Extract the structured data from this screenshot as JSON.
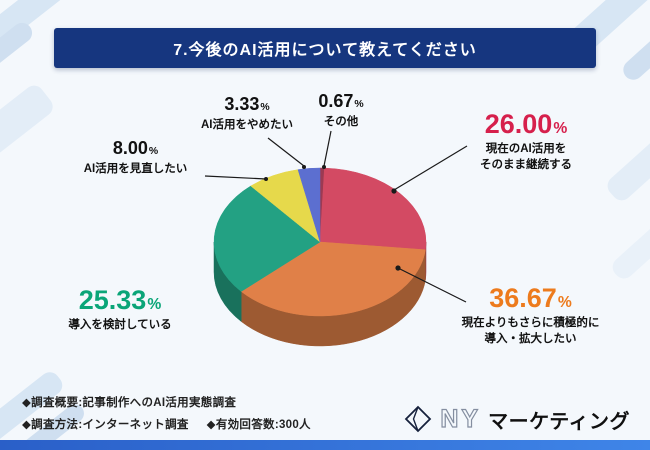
{
  "header": {
    "title": "7.今後のAI活用について教えてください",
    "bg": "#16367f"
  },
  "chart_data": {
    "type": "pie",
    "title": "7.今後のAI活用について教えてください",
    "unit": "%",
    "start_angle_deg": 0,
    "direction": "clockwise",
    "legend_position": "callouts",
    "slices": [
      {
        "label": "その他",
        "value": 0.67,
        "display": "0.67",
        "color": "#9c3a52"
      },
      {
        "label": "現在のAI活用をそのまま継続する",
        "value": 26.0,
        "display": "26.00",
        "color": "#d34a63"
      },
      {
        "label": "現在よりもさらに積極的に導入・拡大したい",
        "value": 36.67,
        "display": "36.67",
        "color": "#e08048"
      },
      {
        "label": "導入を検討している",
        "value": 25.33,
        "display": "25.33",
        "color": "#23a183"
      },
      {
        "label": "AI活用を見直したい",
        "value": 8.0,
        "display": "8.00",
        "color": "#e6d94b"
      },
      {
        "label": "AI活用をやめたい",
        "value": 3.33,
        "display": "3.33",
        "color": "#5c6fd0"
      }
    ]
  },
  "callouts": {
    "keizoku": {
      "pct": "26.00",
      "line1": "現在のAI活用を",
      "line2": "そのまま継続する",
      "accent": "#d6204c"
    },
    "kakudai": {
      "pct": "36.67",
      "line1": "現在よりもさらに積極的に",
      "line2": "導入・拡大したい",
      "accent": "#ed7b1d"
    },
    "kento": {
      "pct": "25.33",
      "line1": "導入を検討している",
      "accent": "#0aa578"
    },
    "minaoshi": {
      "pct": "8.00",
      "line1": "AI活用を見直したい",
      "accent": "#1a1a1a"
    },
    "yameru": {
      "pct": "3.33",
      "line1": "AI活用をやめたい",
      "accent": "#1a1a1a"
    },
    "sonota": {
      "pct": "0.67",
      "line1": "その他",
      "accent": "#1a1a1a"
    }
  },
  "footer": {
    "line1": "◆調査概要:記事制作へのAI活用実態調査",
    "line2a": "◆調査方法:インターネット調査",
    "line2b": "◆有効回答数:300人"
  },
  "logo": {
    "mark": "NY",
    "text": "マーケティング"
  }
}
